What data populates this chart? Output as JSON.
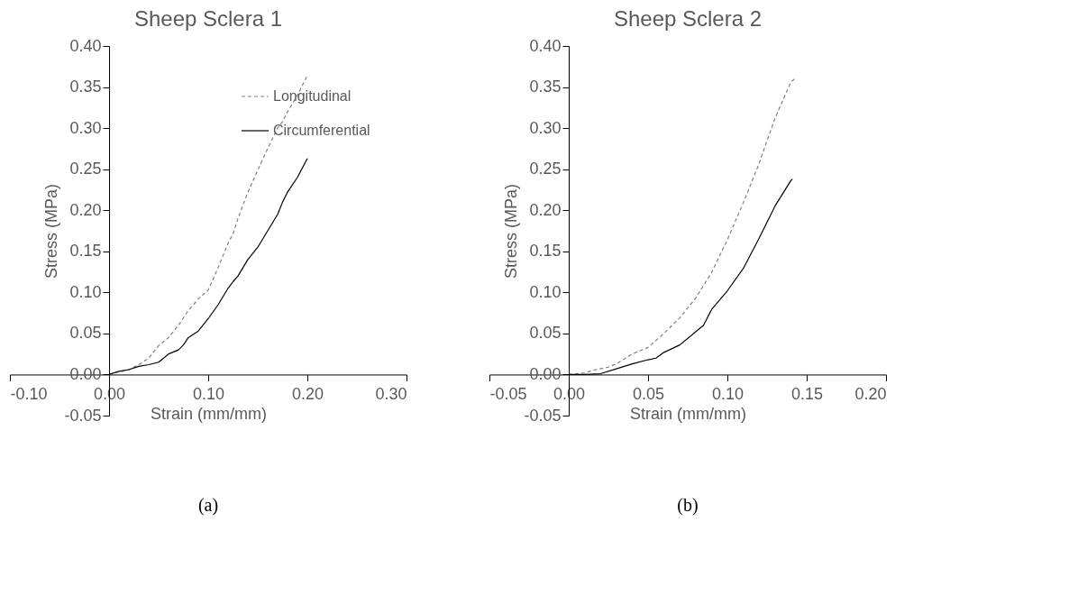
{
  "chart_data": [
    {
      "type": "line",
      "title": "Sheep Sclera 1",
      "xlabel": "Strain (mm/mm)",
      "ylabel": "Stress (MPa)",
      "xlim": [
        -0.1,
        0.3
      ],
      "ylim": [
        -0.05,
        0.4
      ],
      "xticks": [
        {
          "value": -0.1,
          "label": "-0.10"
        },
        {
          "value": 0,
          "label": "0.00"
        },
        {
          "value": 0.1,
          "label": "0.10"
        },
        {
          "value": 0.2,
          "label": "0.20"
        },
        {
          "value": 0.3,
          "label": "0.30"
        }
      ],
      "yticks": [
        {
          "value": -0.05,
          "label": "-0.05"
        },
        {
          "value": 0,
          "label": "0.00"
        },
        {
          "value": 0.05,
          "label": "0.05"
        },
        {
          "value": 0.1,
          "label": "0.10"
        },
        {
          "value": 0.15,
          "label": "0.15"
        },
        {
          "value": 0.2,
          "label": "0.20"
        },
        {
          "value": 0.25,
          "label": "0.25"
        },
        {
          "value": 0.3,
          "label": "0.30"
        },
        {
          "value": 0.35,
          "label": "0.35"
        },
        {
          "value": 0.4,
          "label": "0.40"
        }
      ],
      "legend": "top right",
      "grid": false,
      "series": [
        {
          "name": "Longitudinal",
          "color": "#808080",
          "line_style": "dashed",
          "x": [
            0,
            0.01,
            0.02,
            0.03,
            0.04,
            0.05,
            0.06,
            0.07,
            0.08,
            0.09,
            0.1,
            0.11,
            0.12,
            0.125,
            0.13,
            0.14,
            0.15,
            0.16,
            0.17,
            0.175,
            0.18,
            0.19,
            0.2
          ],
          "values": [
            0,
            0.003,
            0.006,
            0.012,
            0.02,
            0.035,
            0.045,
            0.06,
            0.078,
            0.092,
            0.103,
            0.13,
            0.16,
            0.171,
            0.19,
            0.222,
            0.249,
            0.275,
            0.3,
            0.308,
            0.32,
            0.34,
            0.364
          ]
        },
        {
          "name": "Circumferential",
          "color": "#000000",
          "line_style": "solid",
          "x": [
            0,
            0.01,
            0.02,
            0.03,
            0.04,
            0.05,
            0.06,
            0.07,
            0.075,
            0.08,
            0.09,
            0.1,
            0.11,
            0.12,
            0.125,
            0.13,
            0.14,
            0.15,
            0.16,
            0.17,
            0.175,
            0.18,
            0.19,
            0.2
          ],
          "values": [
            0,
            0.004,
            0.006,
            0.01,
            0.012,
            0.015,
            0.025,
            0.03,
            0.036,
            0.045,
            0.053,
            0.068,
            0.085,
            0.105,
            0.113,
            0.12,
            0.14,
            0.155,
            0.175,
            0.195,
            0.21,
            0.222,
            0.24,
            0.263
          ]
        }
      ],
      "annotations": [
        "(a)"
      ]
    },
    {
      "type": "line",
      "title": "Sheep Sclera 2",
      "xlabel": "Strain (mm/mm)",
      "ylabel": "Stress (MPa)",
      "xlim": [
        -0.05,
        0.2
      ],
      "ylim": [
        -0.05,
        0.4
      ],
      "xticks": [
        {
          "value": -0.05,
          "label": "-0.05"
        },
        {
          "value": 0,
          "label": "0.00"
        },
        {
          "value": 0.05,
          "label": "0.05"
        },
        {
          "value": 0.1,
          "label": "0.10"
        },
        {
          "value": 0.15,
          "label": "0.15"
        },
        {
          "value": 0.2,
          "label": "0.20"
        }
      ],
      "yticks": [
        {
          "value": -0.05,
          "label": "-0.05"
        },
        {
          "value": 0,
          "label": "0.00"
        },
        {
          "value": 0.05,
          "label": "0.05"
        },
        {
          "value": 0.1,
          "label": "0.10"
        },
        {
          "value": 0.15,
          "label": "0.15"
        },
        {
          "value": 0.2,
          "label": "0.20"
        },
        {
          "value": 0.25,
          "label": "0.25"
        },
        {
          "value": 0.3,
          "label": "0.30"
        },
        {
          "value": 0.35,
          "label": "0.35"
        },
        {
          "value": 0.4,
          "label": "0.40"
        }
      ],
      "legend": false,
      "grid": false,
      "series": [
        {
          "color": "#808080",
          "line_style": "dashed",
          "x": [
            0,
            0.01,
            0.017,
            0.025,
            0.03,
            0.04,
            0.05,
            0.06,
            0.07,
            0.08,
            0.09,
            0.1,
            0.11,
            0.12,
            0.13,
            0.14,
            0.143
          ],
          "values": [
            0,
            0.002,
            0.006,
            0.009,
            0.013,
            0.025,
            0.033,
            0.05,
            0.069,
            0.093,
            0.124,
            0.164,
            0.209,
            0.257,
            0.312,
            0.356,
            0.361
          ]
        },
        {
          "color": "#000000",
          "line_style": "solid",
          "x": [
            0,
            0.01,
            0.02,
            0.03,
            0.04,
            0.05,
            0.055,
            0.06,
            0.07,
            0.08,
            0.085,
            0.09,
            0.1,
            0.11,
            0.12,
            0.13,
            0.14,
            0.141
          ],
          "values": [
            0,
            0,
            0.001,
            0.007,
            0.013,
            0.018,
            0.02,
            0.027,
            0.036,
            0.052,
            0.06,
            0.079,
            0.102,
            0.129,
            0.166,
            0.205,
            0.236,
            0.238
          ]
        }
      ],
      "annotations": [
        "(b)"
      ]
    }
  ]
}
